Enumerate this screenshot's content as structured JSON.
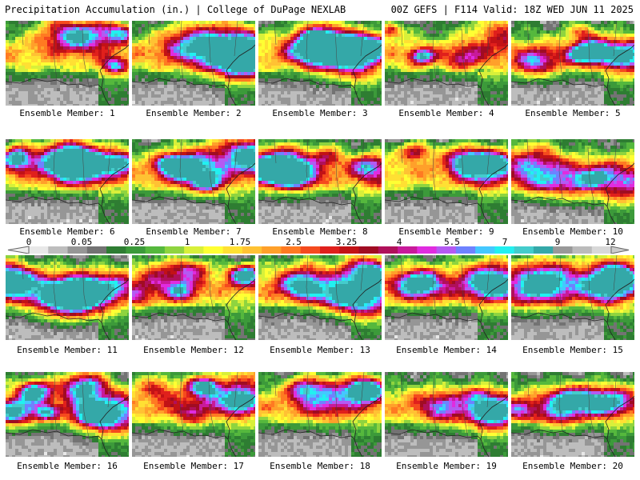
{
  "header": {
    "title": "Precipitation Accumulation (in.) | College of DuPage NEXLAB",
    "run_info": "00Z GEFS | F114 Valid: 18Z WED JUN 11 2025"
  },
  "colorbar": {
    "tick_labels": [
      "0",
      "0.05",
      "0.25",
      "1",
      "1.75",
      "2.5",
      "3.25",
      "4",
      "5.5",
      "7",
      "9",
      "12"
    ],
    "colors": [
      "#e8e8e8",
      "#bdbdbd",
      "#969696",
      "#737373",
      "#2e7d32",
      "#3c9a3a",
      "#55b83d",
      "#8fd43f",
      "#d8f03a",
      "#ffff33",
      "#ffe033",
      "#ffc233",
      "#ffa02a",
      "#ff7a22",
      "#f54a1e",
      "#e0201c",
      "#c21216",
      "#a00c22",
      "#b0105a",
      "#c81a9a",
      "#e02ce0",
      "#b45af2",
      "#6e82ff",
      "#44c8ff",
      "#22f0f0",
      "#44cccc",
      "#34a8a8",
      "#999999",
      "#bbbbbb",
      "#d8d8d8"
    ]
  },
  "members": [
    {
      "label": "Ensemble Member: 1"
    },
    {
      "label": "Ensemble Member: 2"
    },
    {
      "label": "Ensemble Member: 3"
    },
    {
      "label": "Ensemble Member: 4"
    },
    {
      "label": "Ensemble Member: 5"
    },
    {
      "label": "Ensemble Member: 6"
    },
    {
      "label": "Ensemble Member: 7"
    },
    {
      "label": "Ensemble Member: 8"
    },
    {
      "label": "Ensemble Member: 9"
    },
    {
      "label": "Ensemble Member: 10"
    },
    {
      "label": "Ensemble Member: 11"
    },
    {
      "label": "Ensemble Member: 12"
    },
    {
      "label": "Ensemble Member: 13"
    },
    {
      "label": "Ensemble Member: 14"
    },
    {
      "label": "Ensemble Member: 15"
    },
    {
      "label": "Ensemble Member: 16"
    },
    {
      "label": "Ensemble Member: 17"
    },
    {
      "label": "Ensemble Member: 18"
    },
    {
      "label": "Ensemble Member: 19"
    },
    {
      "label": "Ensemble Member: 20"
    }
  ]
}
